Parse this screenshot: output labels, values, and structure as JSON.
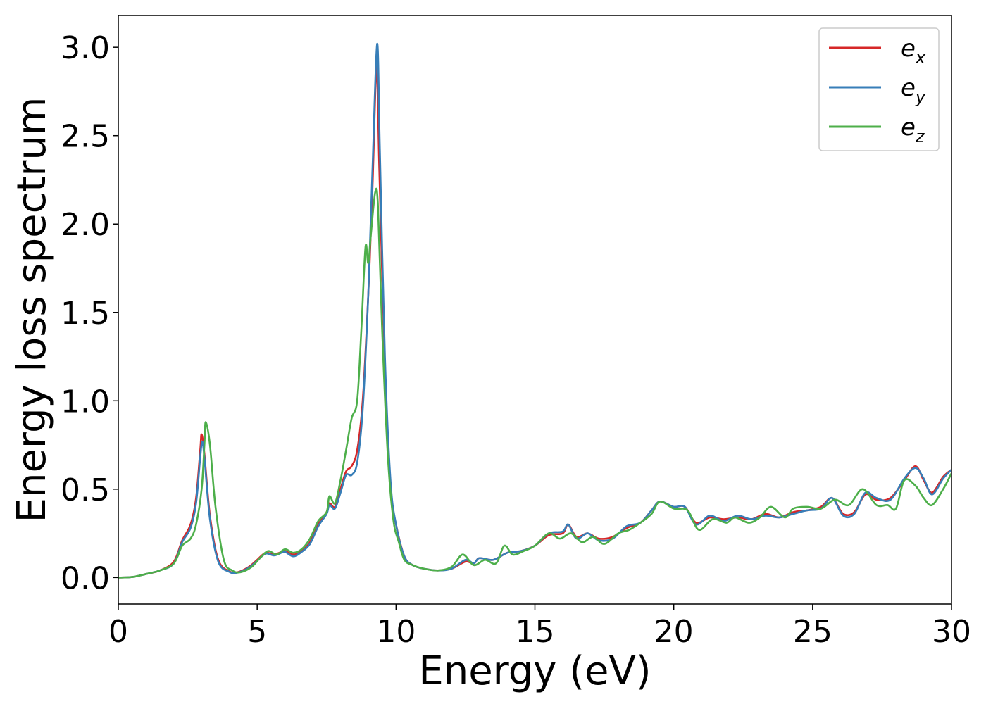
{
  "chart_data": {
    "type": "line",
    "title": "",
    "xlabel": "Energy (eV)",
    "ylabel": "Energy loss spectrum",
    "xlim": [
      0,
      30
    ],
    "ylim": [
      -0.15,
      3.18
    ],
    "xticks": [
      0,
      5,
      10,
      15,
      20,
      25,
      30
    ],
    "xtick_labels": [
      "0",
      "5",
      "10",
      "15",
      "20",
      "25",
      "30"
    ],
    "yticks": [
      0.0,
      0.5,
      1.0,
      1.5,
      2.0,
      2.5,
      3.0
    ],
    "ytick_labels": [
      "0.0",
      "0.5",
      "1.0",
      "1.5",
      "2.0",
      "2.5",
      "3.0"
    ],
    "grid": false,
    "legend": "top-right",
    "series": [
      {
        "name": "e_x",
        "label_base": "e",
        "label_sub": "x",
        "color": "#d62728",
        "points": [
          [
            0,
            0
          ],
          [
            0.5,
            0.003
          ],
          [
            1,
            0.02
          ],
          [
            1.5,
            0.04
          ],
          [
            2,
            0.09
          ],
          [
            2.3,
            0.21
          ],
          [
            2.6,
            0.3
          ],
          [
            2.8,
            0.45
          ],
          [
            2.95,
            0.72
          ],
          [
            3.0,
            0.81
          ],
          [
            3.1,
            0.7
          ],
          [
            3.3,
            0.35
          ],
          [
            3.6,
            0.1
          ],
          [
            4,
            0.035
          ],
          [
            4.3,
            0.03
          ],
          [
            4.7,
            0.06
          ],
          [
            5,
            0.1
          ],
          [
            5.3,
            0.14
          ],
          [
            5.6,
            0.13
          ],
          [
            5.8,
            0.14
          ],
          [
            6,
            0.15
          ],
          [
            6.3,
            0.13
          ],
          [
            6.6,
            0.15
          ],
          [
            6.9,
            0.2
          ],
          [
            7.2,
            0.3
          ],
          [
            7.5,
            0.37
          ],
          [
            7.6,
            0.42
          ],
          [
            7.8,
            0.4
          ],
          [
            8,
            0.5
          ],
          [
            8.2,
            0.6
          ],
          [
            8.4,
            0.63
          ],
          [
            8.6,
            0.72
          ],
          [
            8.8,
            1.0
          ],
          [
            9.0,
            1.6
          ],
          [
            9.15,
            2.2
          ],
          [
            9.3,
            2.89
          ],
          [
            9.4,
            2.3
          ],
          [
            9.6,
            1.2
          ],
          [
            9.8,
            0.5
          ],
          [
            10,
            0.3
          ],
          [
            10.3,
            0.12
          ],
          [
            10.6,
            0.07
          ],
          [
            11,
            0.05
          ],
          [
            11.5,
            0.04
          ],
          [
            12,
            0.05
          ],
          [
            12.5,
            0.09
          ],
          [
            12.8,
            0.08
          ],
          [
            13,
            0.11
          ],
          [
            13.5,
            0.1
          ],
          [
            14,
            0.14
          ],
          [
            14.5,
            0.15
          ],
          [
            15,
            0.18
          ],
          [
            15.5,
            0.24
          ],
          [
            16,
            0.25
          ],
          [
            16.2,
            0.3
          ],
          [
            16.5,
            0.23
          ],
          [
            16.9,
            0.25
          ],
          [
            17.3,
            0.22
          ],
          [
            17.8,
            0.23
          ],
          [
            18.3,
            0.28
          ],
          [
            18.8,
            0.31
          ],
          [
            19.2,
            0.38
          ],
          [
            19.5,
            0.43
          ],
          [
            20,
            0.4
          ],
          [
            20.4,
            0.4
          ],
          [
            20.8,
            0.31
          ],
          [
            21.3,
            0.34
          ],
          [
            21.8,
            0.33
          ],
          [
            22.3,
            0.34
          ],
          [
            22.8,
            0.33
          ],
          [
            23.3,
            0.36
          ],
          [
            23.8,
            0.34
          ],
          [
            24.3,
            0.37
          ],
          [
            24.8,
            0.38
          ],
          [
            25.3,
            0.4
          ],
          [
            25.7,
            0.45
          ],
          [
            26.1,
            0.36
          ],
          [
            26.5,
            0.37
          ],
          [
            26.9,
            0.47
          ],
          [
            27.3,
            0.44
          ],
          [
            27.8,
            0.45
          ],
          [
            28.3,
            0.55
          ],
          [
            28.7,
            0.63
          ],
          [
            29,
            0.55
          ],
          [
            29.3,
            0.48
          ],
          [
            29.7,
            0.57
          ],
          [
            30,
            0.61
          ]
        ]
      },
      {
        "name": "e_y",
        "label_base": "e",
        "label_sub": "y",
        "color": "#377eb8",
        "points": [
          [
            0,
            0
          ],
          [
            0.5,
            0.003
          ],
          [
            1,
            0.02
          ],
          [
            1.5,
            0.04
          ],
          [
            2,
            0.08
          ],
          [
            2.3,
            0.2
          ],
          [
            2.6,
            0.28
          ],
          [
            2.8,
            0.42
          ],
          [
            2.95,
            0.68
          ],
          [
            3.02,
            0.77
          ],
          [
            3.1,
            0.68
          ],
          [
            3.3,
            0.33
          ],
          [
            3.6,
            0.09
          ],
          [
            4,
            0.032
          ],
          [
            4.3,
            0.028
          ],
          [
            4.7,
            0.055
          ],
          [
            5,
            0.095
          ],
          [
            5.3,
            0.135
          ],
          [
            5.6,
            0.125
          ],
          [
            5.8,
            0.135
          ],
          [
            6,
            0.145
          ],
          [
            6.3,
            0.12
          ],
          [
            6.6,
            0.145
          ],
          [
            6.9,
            0.19
          ],
          [
            7.2,
            0.29
          ],
          [
            7.5,
            0.36
          ],
          [
            7.6,
            0.41
          ],
          [
            7.8,
            0.39
          ],
          [
            8,
            0.48
          ],
          [
            8.2,
            0.58
          ],
          [
            8.4,
            0.58
          ],
          [
            8.6,
            0.65
          ],
          [
            8.8,
            0.95
          ],
          [
            9.0,
            1.6
          ],
          [
            9.15,
            2.3
          ],
          [
            9.32,
            3.02
          ],
          [
            9.42,
            2.4
          ],
          [
            9.6,
            1.25
          ],
          [
            9.8,
            0.55
          ],
          [
            10,
            0.3
          ],
          [
            10.3,
            0.12
          ],
          [
            10.6,
            0.07
          ],
          [
            11,
            0.05
          ],
          [
            11.5,
            0.04
          ],
          [
            12,
            0.05
          ],
          [
            12.5,
            0.1
          ],
          [
            12.8,
            0.08
          ],
          [
            13,
            0.11
          ],
          [
            13.5,
            0.1
          ],
          [
            14,
            0.14
          ],
          [
            14.5,
            0.15
          ],
          [
            15,
            0.18
          ],
          [
            15.5,
            0.25
          ],
          [
            16,
            0.26
          ],
          [
            16.2,
            0.3
          ],
          [
            16.5,
            0.22
          ],
          [
            16.9,
            0.25
          ],
          [
            17.3,
            0.21
          ],
          [
            17.8,
            0.22
          ],
          [
            18.3,
            0.29
          ],
          [
            18.8,
            0.31
          ],
          [
            19.2,
            0.38
          ],
          [
            19.5,
            0.43
          ],
          [
            20,
            0.4
          ],
          [
            20.4,
            0.4
          ],
          [
            20.8,
            0.3
          ],
          [
            21.3,
            0.35
          ],
          [
            21.8,
            0.32
          ],
          [
            22.3,
            0.35
          ],
          [
            22.8,
            0.33
          ],
          [
            23.3,
            0.35
          ],
          [
            23.8,
            0.34
          ],
          [
            24.3,
            0.36
          ],
          [
            24.8,
            0.38
          ],
          [
            25.3,
            0.39
          ],
          [
            25.7,
            0.45
          ],
          [
            26.1,
            0.35
          ],
          [
            26.5,
            0.36
          ],
          [
            26.9,
            0.48
          ],
          [
            27.3,
            0.45
          ],
          [
            27.8,
            0.44
          ],
          [
            28.3,
            0.56
          ],
          [
            28.7,
            0.62
          ],
          [
            29,
            0.56
          ],
          [
            29.3,
            0.47
          ],
          [
            29.7,
            0.56
          ],
          [
            30,
            0.61
          ]
        ]
      },
      {
        "name": "e_z",
        "label_base": "e",
        "label_sub": "z",
        "color": "#4daf4a",
        "points": [
          [
            0,
            0
          ],
          [
            0.5,
            0.003
          ],
          [
            1,
            0.02
          ],
          [
            1.5,
            0.04
          ],
          [
            2,
            0.08
          ],
          [
            2.3,
            0.18
          ],
          [
            2.6,
            0.22
          ],
          [
            2.8,
            0.3
          ],
          [
            3.0,
            0.5
          ],
          [
            3.1,
            0.75
          ],
          [
            3.15,
            0.88
          ],
          [
            3.3,
            0.75
          ],
          [
            3.5,
            0.4
          ],
          [
            3.8,
            0.1
          ],
          [
            4.1,
            0.04
          ],
          [
            4.4,
            0.03
          ],
          [
            4.8,
            0.06
          ],
          [
            5.1,
            0.11
          ],
          [
            5.4,
            0.15
          ],
          [
            5.7,
            0.13
          ],
          [
            6,
            0.16
          ],
          [
            6.3,
            0.14
          ],
          [
            6.6,
            0.16
          ],
          [
            6.9,
            0.22
          ],
          [
            7.2,
            0.32
          ],
          [
            7.5,
            0.37
          ],
          [
            7.6,
            0.46
          ],
          [
            7.8,
            0.42
          ],
          [
            8,
            0.55
          ],
          [
            8.2,
            0.72
          ],
          [
            8.4,
            0.9
          ],
          [
            8.6,
            1.0
          ],
          [
            8.75,
            1.4
          ],
          [
            8.9,
            1.87
          ],
          [
            9.0,
            1.78
          ],
          [
            9.1,
            1.95
          ],
          [
            9.25,
            2.18
          ],
          [
            9.35,
            2.1
          ],
          [
            9.5,
            1.4
          ],
          [
            9.7,
            0.7
          ],
          [
            9.9,
            0.33
          ],
          [
            10.1,
            0.2
          ],
          [
            10.3,
            0.1
          ],
          [
            10.6,
            0.07
          ],
          [
            11,
            0.05
          ],
          [
            11.5,
            0.04
          ],
          [
            12,
            0.06
          ],
          [
            12.4,
            0.13
          ],
          [
            12.8,
            0.07
          ],
          [
            13.2,
            0.1
          ],
          [
            13.6,
            0.08
          ],
          [
            13.9,
            0.18
          ],
          [
            14.2,
            0.13
          ],
          [
            14.6,
            0.15
          ],
          [
            15,
            0.18
          ],
          [
            15.5,
            0.25
          ],
          [
            15.9,
            0.22
          ],
          [
            16.3,
            0.25
          ],
          [
            16.7,
            0.2
          ],
          [
            17.1,
            0.23
          ],
          [
            17.5,
            0.19
          ],
          [
            18,
            0.25
          ],
          [
            18.4,
            0.27
          ],
          [
            18.8,
            0.31
          ],
          [
            19.2,
            0.36
          ],
          [
            19.5,
            0.43
          ],
          [
            20,
            0.39
          ],
          [
            20.5,
            0.38
          ],
          [
            20.9,
            0.27
          ],
          [
            21.4,
            0.33
          ],
          [
            21.9,
            0.31
          ],
          [
            22.2,
            0.34
          ],
          [
            22.7,
            0.31
          ],
          [
            23.1,
            0.34
          ],
          [
            23.5,
            0.4
          ],
          [
            24,
            0.34
          ],
          [
            24.3,
            0.39
          ],
          [
            24.8,
            0.4
          ],
          [
            25.3,
            0.39
          ],
          [
            25.8,
            0.44
          ],
          [
            26.3,
            0.41
          ],
          [
            26.8,
            0.5
          ],
          [
            27.3,
            0.41
          ],
          [
            27.7,
            0.41
          ],
          [
            28.0,
            0.39
          ],
          [
            28.3,
            0.55
          ],
          [
            28.7,
            0.52
          ],
          [
            29.0,
            0.45
          ],
          [
            29.3,
            0.41
          ],
          [
            29.7,
            0.5
          ],
          [
            30,
            0.59
          ]
        ]
      }
    ]
  }
}
